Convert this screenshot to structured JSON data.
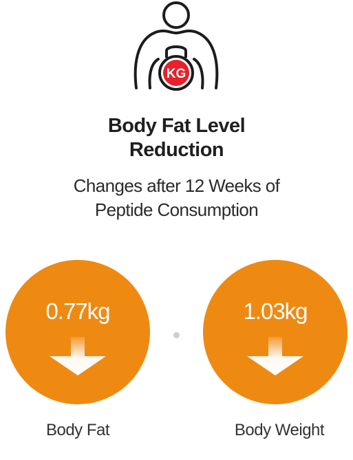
{
  "header": {
    "icon": "person-weight-icon",
    "icon_badge": "KG",
    "title_line1": "Body Fat Level",
    "title_line2": "Reduction",
    "subtitle_line1": "Changes after 12 Weeks of",
    "subtitle_line2": "Peptide Consumption"
  },
  "stats": [
    {
      "value": "0.77kg",
      "label": "Body Fat",
      "icon": "arrow-down-icon"
    },
    {
      "value": "1.03kg",
      "label": "Body Weight",
      "icon": "arrow-down-icon"
    }
  ],
  "colors": {
    "accent": "#ee8a12",
    "badge": "#e8202a",
    "text": "#222222"
  }
}
